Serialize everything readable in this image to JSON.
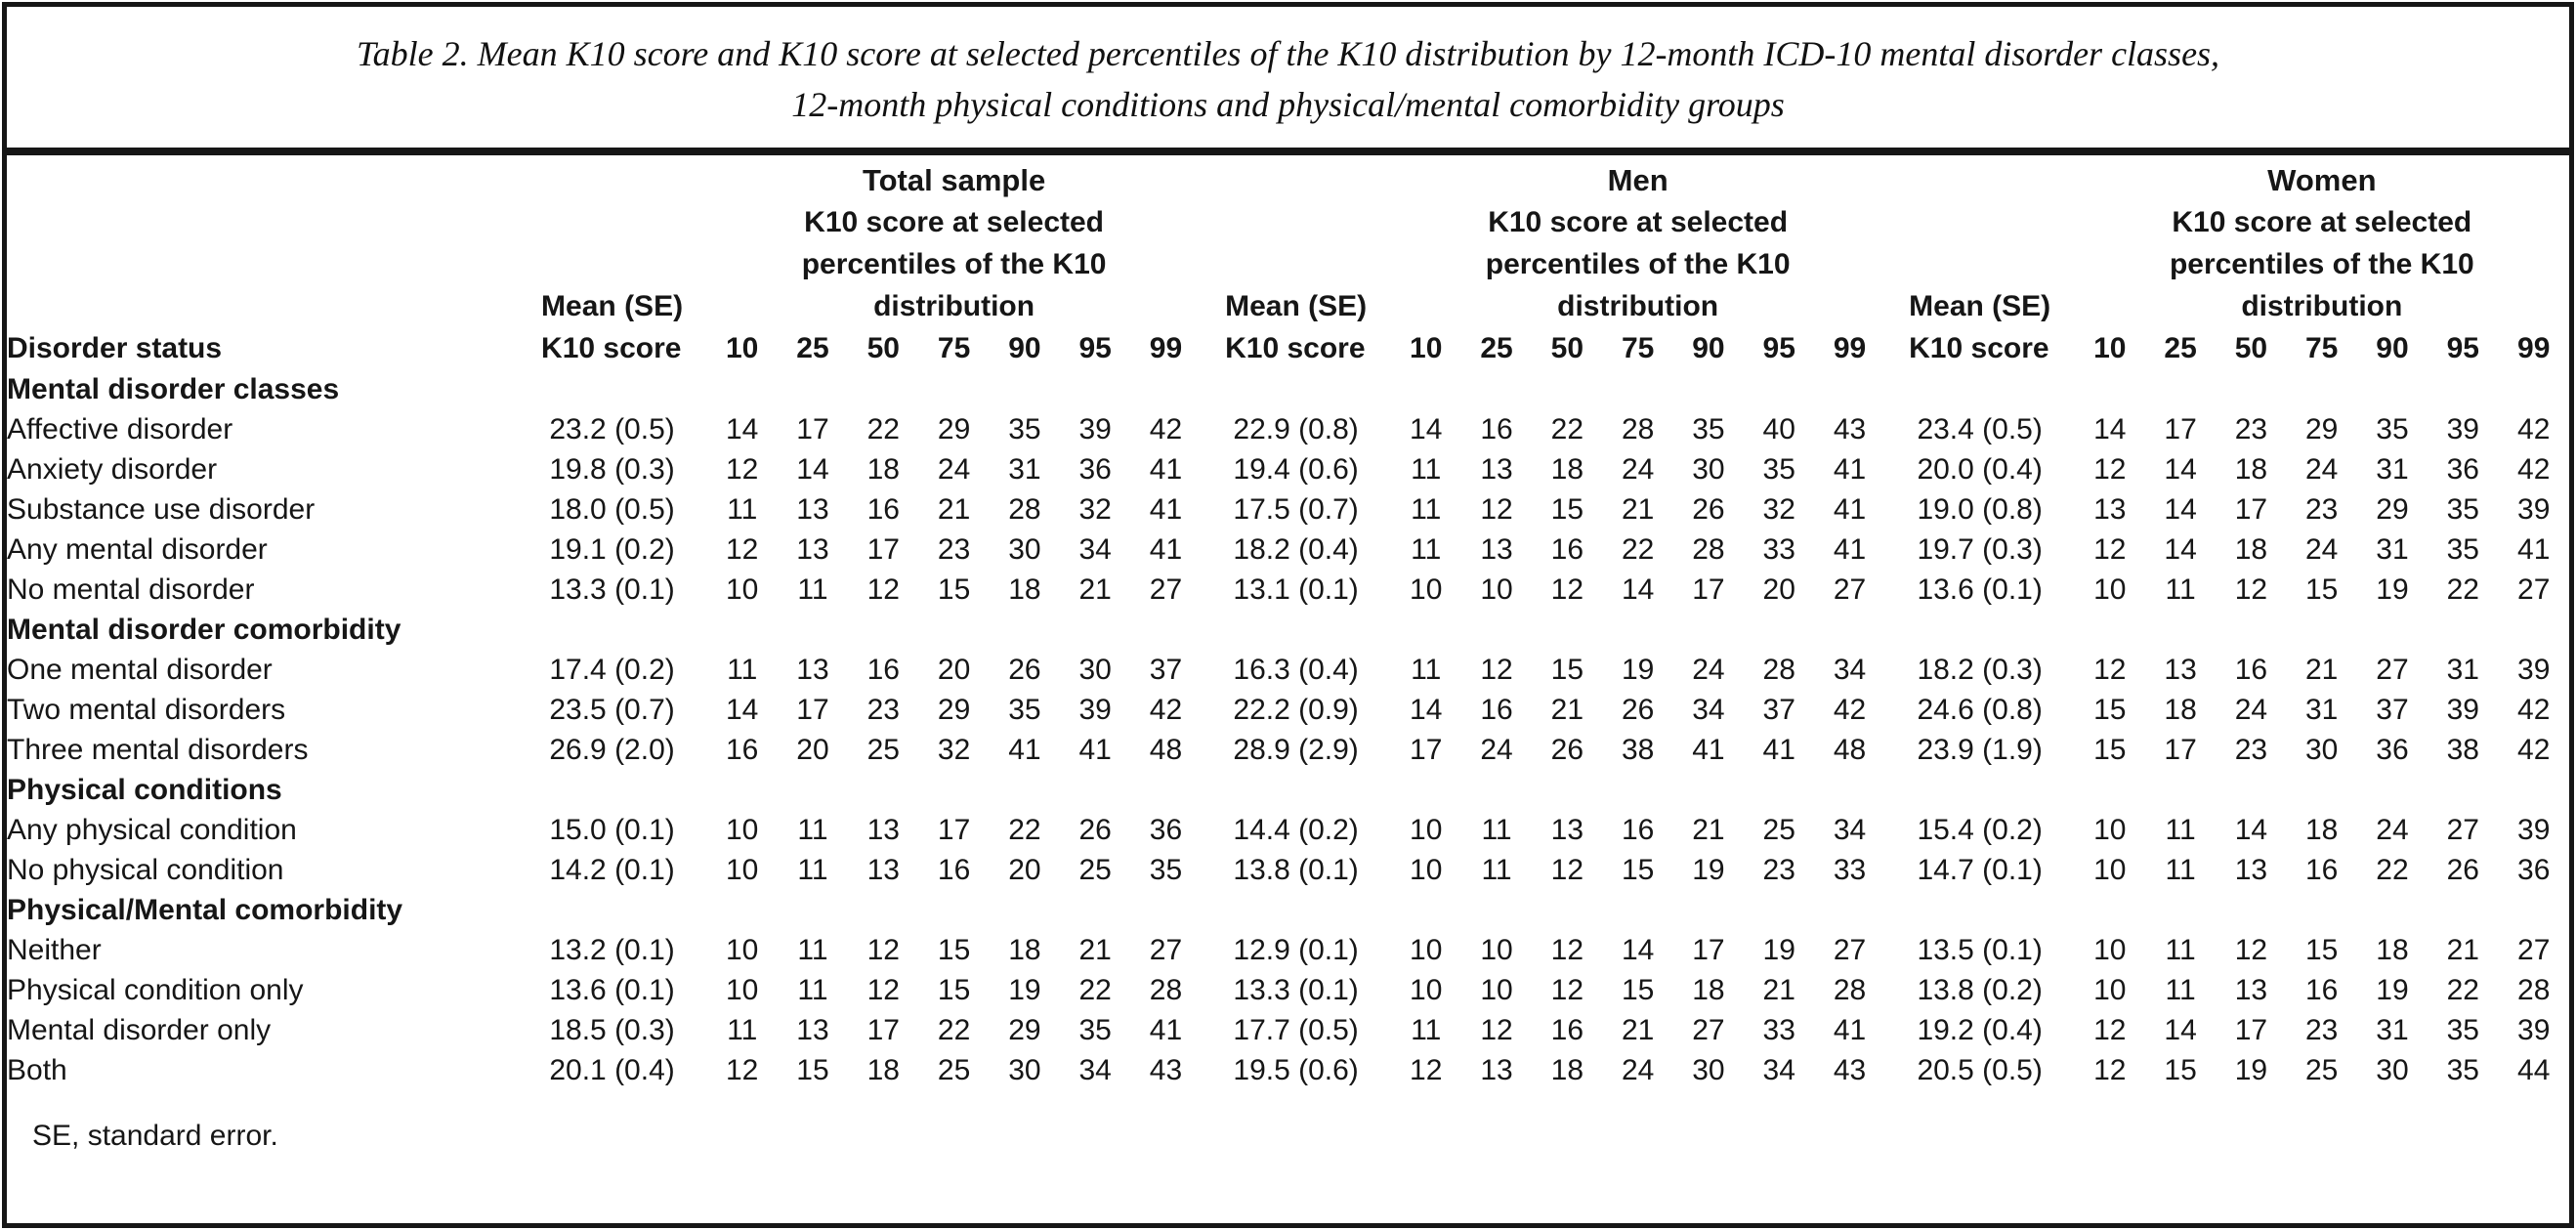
{
  "title": {
    "line1": "Table 2. Mean K10 score and K10 score at selected percentiles of the K10 distribution by 12-month ICD-10 mental disorder classes,",
    "line2": "12-month physical conditions and physical/mental comorbidity groups"
  },
  "table": {
    "row_label_header": "Disorder status",
    "mean_header_lines": [
      "Mean (SE)",
      "K10 score"
    ],
    "percentile_desc_lines": [
      "K10 score at selected",
      "percentiles of the K10",
      "distribution"
    ],
    "percentile_labels": [
      "10",
      "25",
      "50",
      "75",
      "90",
      "95",
      "99"
    ],
    "groups": [
      {
        "label": "Total sample",
        "key": "total"
      },
      {
        "label": "Men",
        "key": "men"
      },
      {
        "label": "Women",
        "key": "women"
      }
    ],
    "sections": [
      {
        "label": "Mental disorder classes",
        "rows": [
          {
            "label": "Affective disorder",
            "total": {
              "mean": "23.2 (0.5)",
              "p": [
                14,
                17,
                22,
                29,
                35,
                39,
                42
              ]
            },
            "men": {
              "mean": "22.9 (0.8)",
              "p": [
                14,
                16,
                22,
                28,
                35,
                40,
                43
              ]
            },
            "women": {
              "mean": "23.4 (0.5)",
              "p": [
                14,
                17,
                23,
                29,
                35,
                39,
                42
              ]
            }
          },
          {
            "label": "Anxiety disorder",
            "total": {
              "mean": "19.8 (0.3)",
              "p": [
                12,
                14,
                18,
                24,
                31,
                36,
                41
              ]
            },
            "men": {
              "mean": "19.4 (0.6)",
              "p": [
                11,
                13,
                18,
                24,
                30,
                35,
                41
              ]
            },
            "women": {
              "mean": "20.0 (0.4)",
              "p": [
                12,
                14,
                18,
                24,
                31,
                36,
                42
              ]
            }
          },
          {
            "label": "Substance use disorder",
            "total": {
              "mean": "18.0 (0.5)",
              "p": [
                11,
                13,
                16,
                21,
                28,
                32,
                41
              ]
            },
            "men": {
              "mean": "17.5 (0.7)",
              "p": [
                11,
                12,
                15,
                21,
                26,
                32,
                41
              ]
            },
            "women": {
              "mean": "19.0 (0.8)",
              "p": [
                13,
                14,
                17,
                23,
                29,
                35,
                39
              ]
            }
          },
          {
            "label": "Any mental disorder",
            "total": {
              "mean": "19.1 (0.2)",
              "p": [
                12,
                13,
                17,
                23,
                30,
                34,
                41
              ]
            },
            "men": {
              "mean": "18.2 (0.4)",
              "p": [
                11,
                13,
                16,
                22,
                28,
                33,
                41
              ]
            },
            "women": {
              "mean": "19.7 (0.3)",
              "p": [
                12,
                14,
                18,
                24,
                31,
                35,
                41
              ]
            }
          },
          {
            "label": "No mental disorder",
            "total": {
              "mean": "13.3 (0.1)",
              "p": [
                10,
                11,
                12,
                15,
                18,
                21,
                27
              ]
            },
            "men": {
              "mean": "13.1 (0.1)",
              "p": [
                10,
                10,
                12,
                14,
                17,
                20,
                27
              ]
            },
            "women": {
              "mean": "13.6 (0.1)",
              "p": [
                10,
                11,
                12,
                15,
                19,
                22,
                27
              ]
            }
          }
        ]
      },
      {
        "label": "Mental disorder comorbidity",
        "rows": [
          {
            "label": "One mental disorder",
            "total": {
              "mean": "17.4 (0.2)",
              "p": [
                11,
                13,
                16,
                20,
                26,
                30,
                37
              ]
            },
            "men": {
              "mean": "16.3 (0.4)",
              "p": [
                11,
                12,
                15,
                19,
                24,
                28,
                34
              ]
            },
            "women": {
              "mean": "18.2 (0.3)",
              "p": [
                12,
                13,
                16,
                21,
                27,
                31,
                39
              ]
            }
          },
          {
            "label": "Two mental disorders",
            "total": {
              "mean": "23.5 (0.7)",
              "p": [
                14,
                17,
                23,
                29,
                35,
                39,
                42
              ]
            },
            "men": {
              "mean": "22.2 (0.9)",
              "p": [
                14,
                16,
                21,
                26,
                34,
                37,
                42
              ]
            },
            "women": {
              "mean": "24.6 (0.8)",
              "p": [
                15,
                18,
                24,
                31,
                37,
                39,
                42
              ]
            }
          },
          {
            "label": "Three mental disorders",
            "total": {
              "mean": "26.9 (2.0)",
              "p": [
                16,
                20,
                25,
                32,
                41,
                41,
                48
              ]
            },
            "men": {
              "mean": "28.9 (2.9)",
              "p": [
                17,
                24,
                26,
                38,
                41,
                41,
                48
              ]
            },
            "women": {
              "mean": "23.9 (1.9)",
              "p": [
                15,
                17,
                23,
                30,
                36,
                38,
                42
              ]
            }
          }
        ]
      },
      {
        "label": "Physical conditions",
        "rows": [
          {
            "label": "Any physical condition",
            "total": {
              "mean": "15.0 (0.1)",
              "p": [
                10,
                11,
                13,
                17,
                22,
                26,
                36
              ]
            },
            "men": {
              "mean": "14.4 (0.2)",
              "p": [
                10,
                11,
                13,
                16,
                21,
                25,
                34
              ]
            },
            "women": {
              "mean": "15.4 (0.2)",
              "p": [
                10,
                11,
                14,
                18,
                24,
                27,
                39
              ]
            }
          },
          {
            "label": "No physical condition",
            "total": {
              "mean": "14.2 (0.1)",
              "p": [
                10,
                11,
                13,
                16,
                20,
                25,
                35
              ]
            },
            "men": {
              "mean": "13.8 (0.1)",
              "p": [
                10,
                11,
                12,
                15,
                19,
                23,
                33
              ]
            },
            "women": {
              "mean": "14.7 (0.1)",
              "p": [
                10,
                11,
                13,
                16,
                22,
                26,
                36
              ]
            }
          }
        ]
      },
      {
        "label": "Physical/Mental comorbidity",
        "rows": [
          {
            "label": "Neither",
            "total": {
              "mean": "13.2 (0.1)",
              "p": [
                10,
                11,
                12,
                15,
                18,
                21,
                27
              ]
            },
            "men": {
              "mean": "12.9 (0.1)",
              "p": [
                10,
                10,
                12,
                14,
                17,
                19,
                27
              ]
            },
            "women": {
              "mean": "13.5 (0.1)",
              "p": [
                10,
                11,
                12,
                15,
                18,
                21,
                27
              ]
            }
          },
          {
            "label": "Physical condition only",
            "total": {
              "mean": "13.6 (0.1)",
              "p": [
                10,
                11,
                12,
                15,
                19,
                22,
                28
              ]
            },
            "men": {
              "mean": "13.3 (0.1)",
              "p": [
                10,
                10,
                12,
                15,
                18,
                21,
                28
              ]
            },
            "women": {
              "mean": "13.8 (0.2)",
              "p": [
                10,
                11,
                13,
                16,
                19,
                22,
                28
              ]
            }
          },
          {
            "label": "Mental disorder only",
            "total": {
              "mean": "18.5 (0.3)",
              "p": [
                11,
                13,
                17,
                22,
                29,
                35,
                41
              ]
            },
            "men": {
              "mean": "17.7 (0.5)",
              "p": [
                11,
                12,
                16,
                21,
                27,
                33,
                41
              ]
            },
            "women": {
              "mean": "19.2 (0.4)",
              "p": [
                12,
                14,
                17,
                23,
                31,
                35,
                39
              ]
            }
          },
          {
            "label": "Both",
            "total": {
              "mean": "20.1 (0.4)",
              "p": [
                12,
                15,
                18,
                25,
                30,
                34,
                43
              ]
            },
            "men": {
              "mean": "19.5 (0.6)",
              "p": [
                12,
                13,
                18,
                24,
                30,
                34,
                43
              ]
            },
            "women": {
              "mean": "20.5 (0.5)",
              "p": [
                12,
                15,
                19,
                25,
                30,
                35,
                44
              ]
            }
          }
        ]
      }
    ]
  },
  "footnote": "SE, standard error.",
  "colors": {
    "text": "#161616",
    "background": "#ffffff",
    "rule": "#161616"
  }
}
